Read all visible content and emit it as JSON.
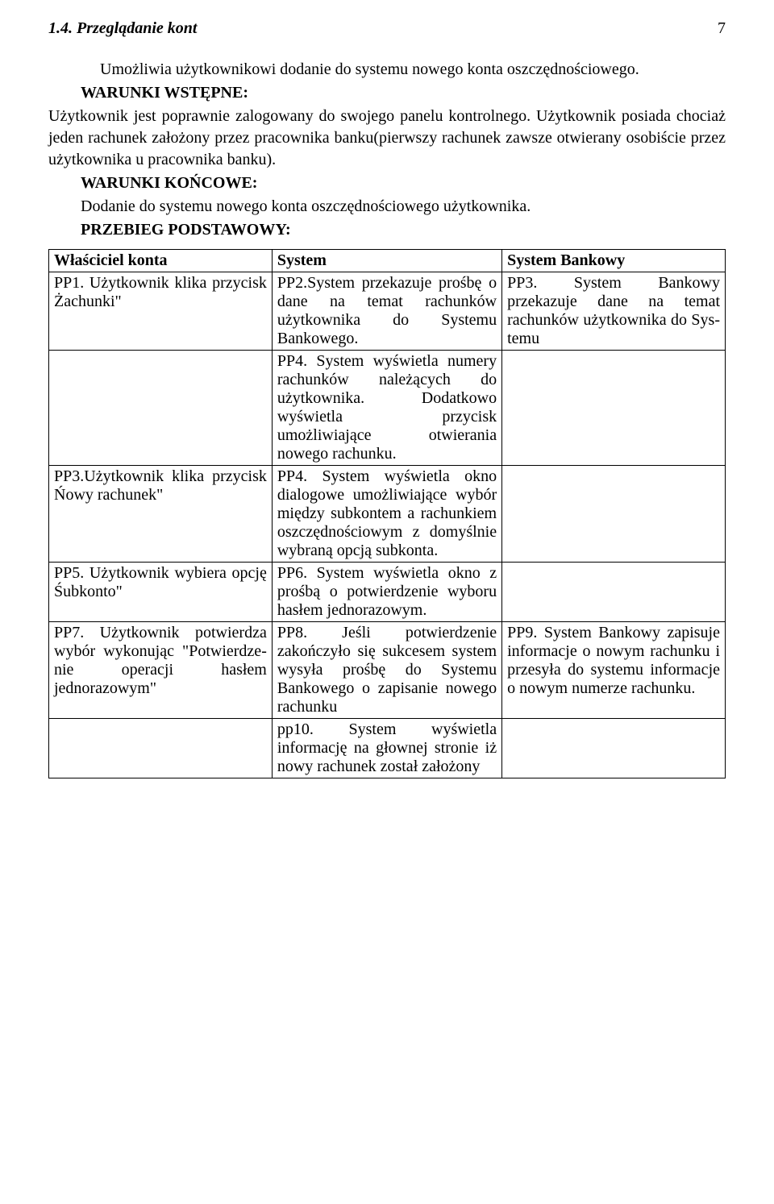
{
  "header": {
    "section": "1.4. Przeglądanie kont",
    "pagenum": "7"
  },
  "intro": {
    "p1": "Umożliwia użytkownikowi dodanie do systemu nowego konta oszczęd­nościowego.",
    "label1": "WARUNKI WSTĘPNE:",
    "p2": "Użytkownik jest poprawnie zalogowany do swojego panelu kontrolnego. Użytkownik posiada chociaż jeden rachunek założony przez pracownika banku(pierwszy rachunek zawsze otwierany osobiście przez użytkownika u pracownika banku).",
    "label2": "WARUNKI KOŃCOWE:",
    "p3": "Dodanie do systemu nowego konta oszczędnościowego użytkownika.",
    "label3": "PRZEBIEG PODSTAWOWY:"
  },
  "table": {
    "headers": [
      "Właściciel konta",
      "System",
      "System Bankowy"
    ],
    "rows": [
      [
        "PP1. Użytkownik klika przycisk Żachunki\"",
        "PP2.System przekazuje prośbę o dane na temat rachunków użytkownika do Sys­temu Bankowego.",
        "PP3. System Bankowy przekazuje dane na temat rachunków użytkownika do Sys­temu"
      ],
      [
        "",
        "PP4. System wyświetla numery rachunków należących do użytkownika. Do­datkowo wyświetla przycisk umożliwiające otwierania nowego rachunku.",
        ""
      ],
      [
        "PP3.Użytkownik klika przycisk Ńowy rachunek\"",
        "PP4. System wyświ­etla okno dialogowe umożliwiające wybór między subkontem a rachunkiem oszczęd­nościowym z domyślnie wybraną opcją sub­konta.",
        ""
      ],
      [
        "PP5. Użytkownik wybiera opcję Śubkonto\"",
        "PP6. System wyświ­etla okno z prośbą o potwierdzenie wyboru hasłem jednorazowym.",
        ""
      ],
      [
        "PP7. Użytkownik potwierdza wybór wykonując \"Potwierdze­nie operacji hasłem jednorazowym\"",
        "PP8. Jeśli potwierdzenie zakończyło się sukce­sem system wysyła prośbę do Systemu Bankowego o zapisanie nowego rachunku",
        "PP9. System Bankowy zapisuje informacje o nowym rachunku i przesyła do systemu informacje o nowym numerze rachunku."
      ],
      [
        "",
        "pp10. System wyświ­etla informację na głownej stronie iż nowy rachunek został założony",
        ""
      ]
    ]
  }
}
